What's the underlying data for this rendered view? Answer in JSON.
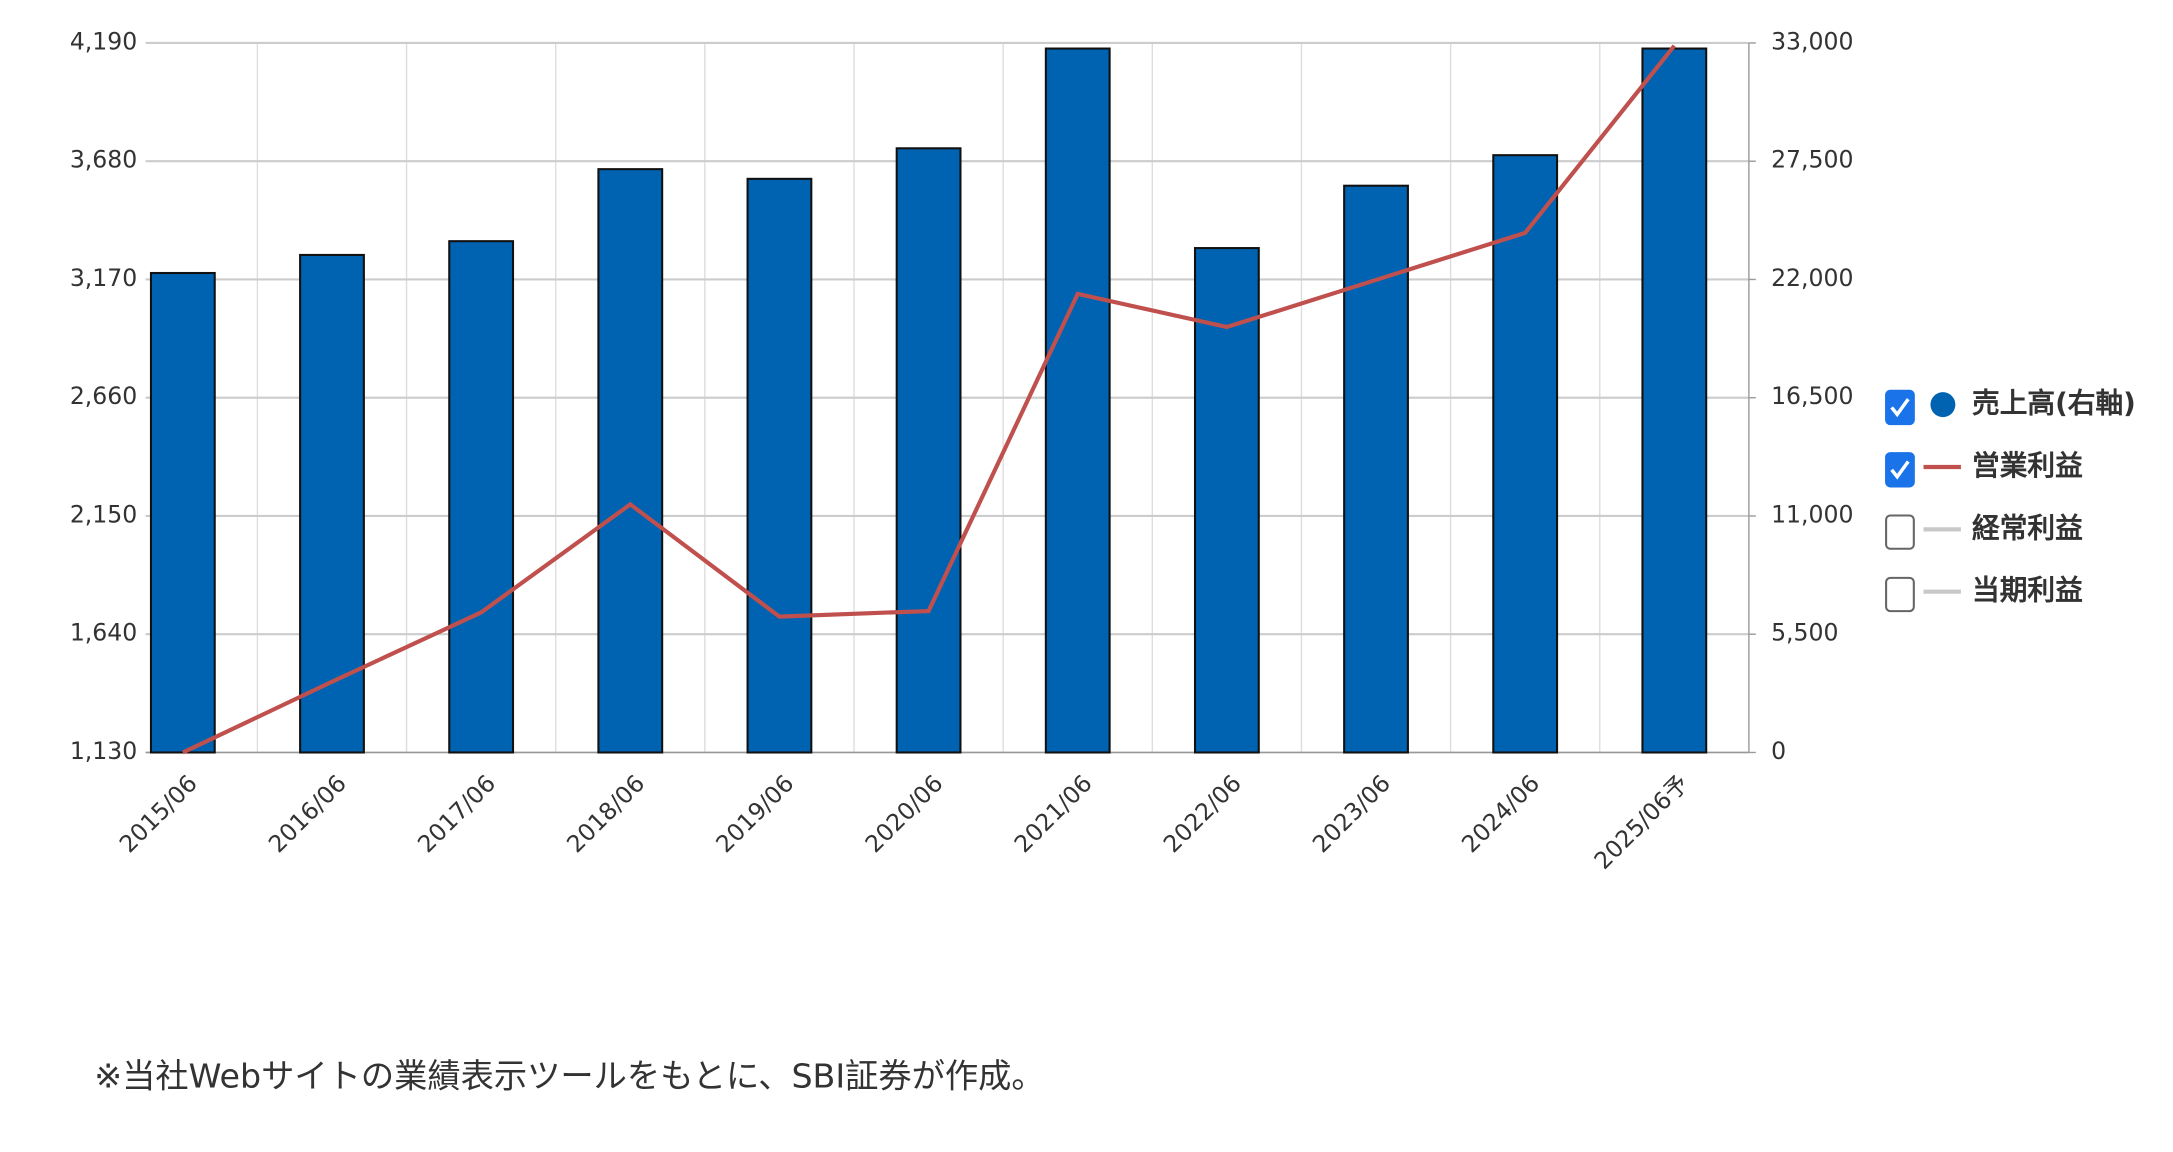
{
  "chart_data": {
    "type": "bar_line",
    "categories": [
      "2015/06",
      "2016/06",
      "2017/06",
      "2018/06",
      "2019/06",
      "2020/06",
      "2021/06",
      "2022/06",
      "2023/06",
      "2024/06",
      "2025/06予"
    ],
    "series": [
      {
        "name": "売上高(右軸)",
        "type": "bar",
        "axis": "y2",
        "color": "#0063b1",
        "checked": true,
        "values": [
          22300,
          23140,
          23780,
          27130,
          26680,
          28100,
          32740,
          23460,
          26360,
          27780,
          32740
        ]
      },
      {
        "name": "営業利益",
        "type": "line",
        "axis": "y",
        "color": "#c0504d",
        "checked": true,
        "values": [
          1130,
          1435,
          1734,
          2200,
          1716,
          1740,
          3108,
          2965,
          3168,
          3371,
          4178
        ]
      }
    ],
    "legend_extra": [
      {
        "name": "経常利益",
        "checked": false,
        "color": "#c8c8c8"
      },
      {
        "name": "当期利益",
        "checked": false,
        "color": "#c8c8c8"
      }
    ],
    "ylim": [
      1130,
      4190
    ],
    "yticks": [
      {
        "value": 1130,
        "label": "1,130"
      },
      {
        "value": 1640,
        "label": "1,640"
      },
      {
        "value": 2150,
        "label": "2,150"
      },
      {
        "value": 2660,
        "label": "2,660"
      },
      {
        "value": 3170,
        "label": "3,170"
      },
      {
        "value": 3680,
        "label": "3,680"
      },
      {
        "value": 4190,
        "label": "4,190"
      }
    ],
    "y2lim": [
      0,
      33000
    ],
    "y2ticks": [
      0,
      {
        "value": 5500,
        "label": "5,500"
      },
      {
        "value": 11000,
        "label": "11,000"
      },
      {
        "value": 16500,
        "label": "16,500"
      },
      {
        "value": 22000,
        "label": "22,000"
      },
      {
        "value": 27500,
        "label": "27,500"
      },
      {
        "value": 33000,
        "label": "33,000"
      }
    ],
    "grid": true,
    "legend": "right",
    "note": "※当社Webサイトの業績表示ツールをもとに、SBI証券が作成。"
  }
}
